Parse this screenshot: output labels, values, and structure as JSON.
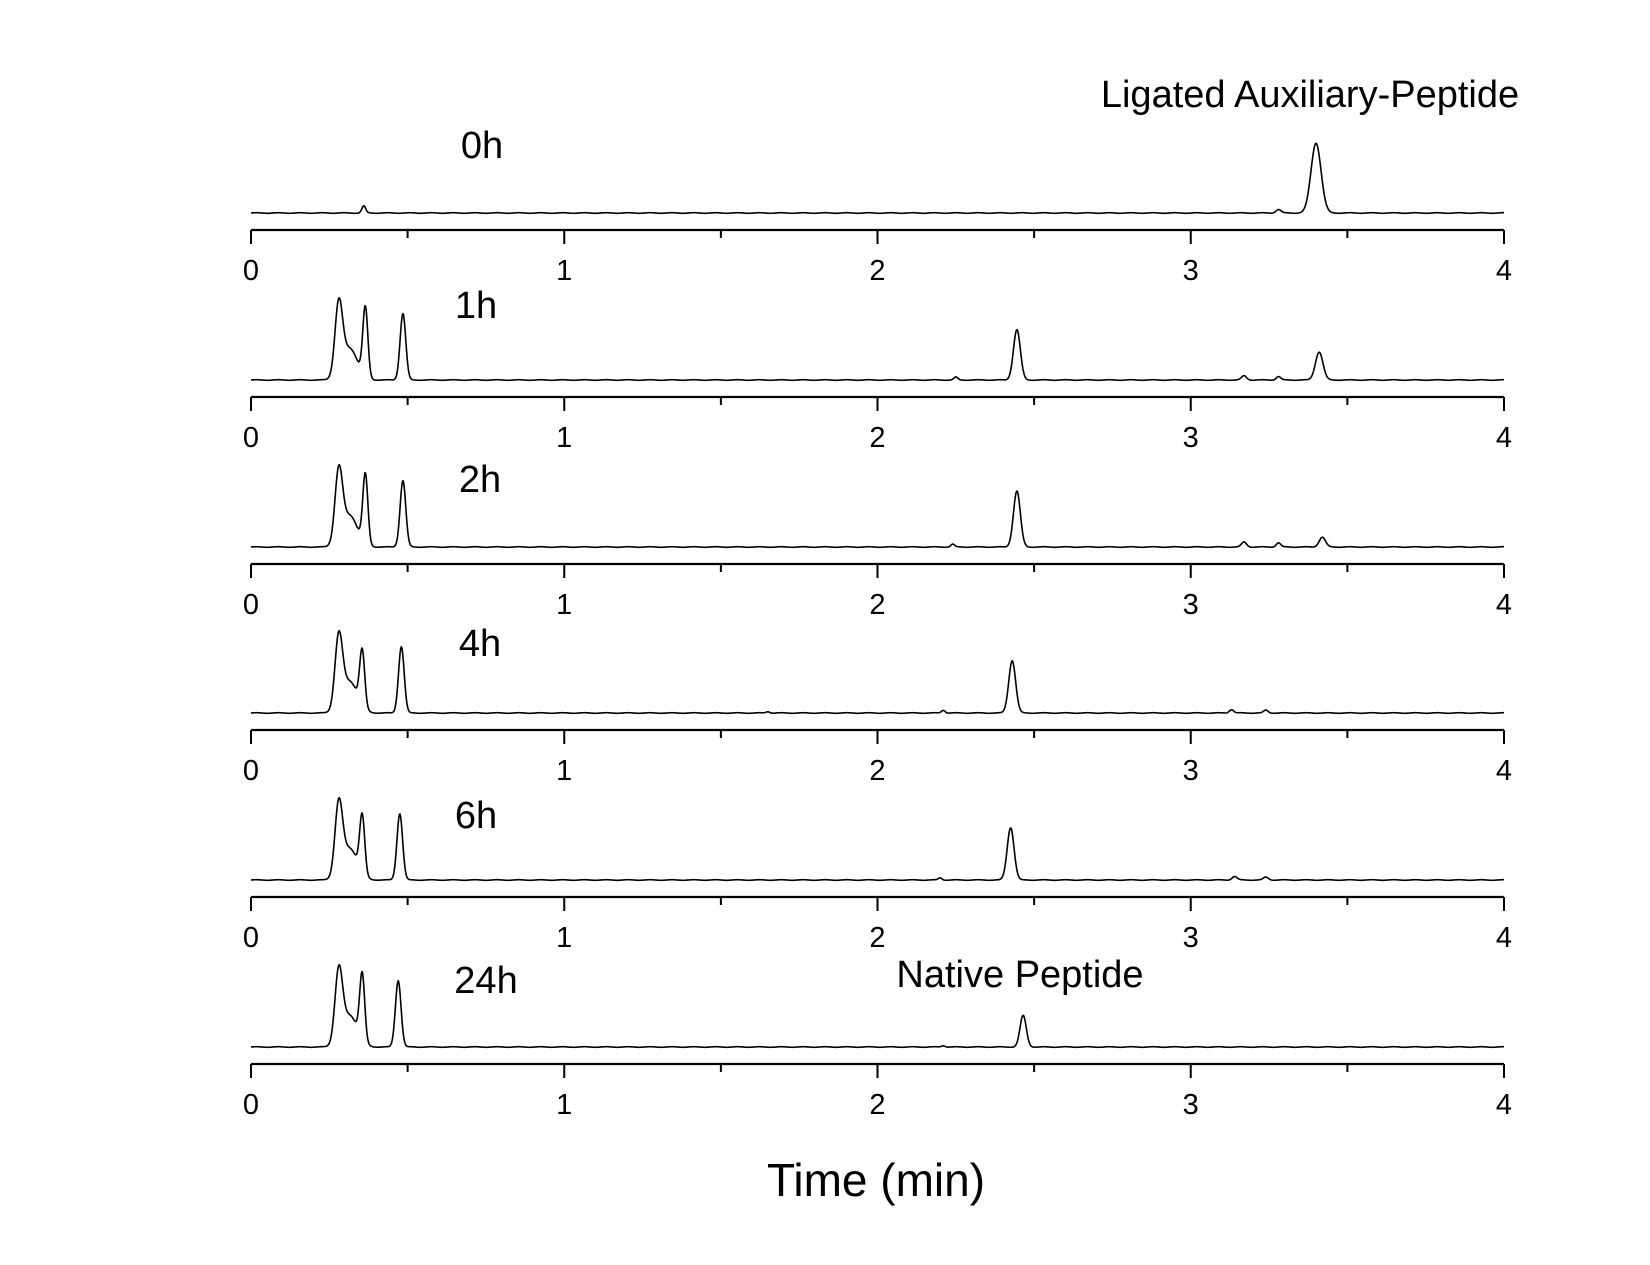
{
  "chart_data": {
    "type": "line",
    "xlabel": "Time (min)",
    "xlim": [
      0,
      4
    ],
    "xticks": [
      0,
      1,
      2,
      3,
      4
    ],
    "xtick_labels": [
      "0",
      "1",
      "2",
      "3",
      "4"
    ],
    "grid": false,
    "annotations": {
      "top": "Ligated Auxiliary-Peptide",
      "bottom": "Native Peptide"
    },
    "series": [
      {
        "name": "0h",
        "peaks": [
          {
            "t": 0.36,
            "h": 0.1,
            "w": 0.006
          },
          {
            "t": 3.28,
            "h": 0.05,
            "w": 0.008
          },
          {
            "t": 3.4,
            "h": 1.0,
            "w": 0.016
          }
        ]
      },
      {
        "name": "1h",
        "peaks": [
          {
            "t": 0.28,
            "h": 1.0,
            "w": 0.012
          },
          {
            "t": 0.315,
            "h": 0.45,
            "w": 0.025
          },
          {
            "t": 0.365,
            "h": 1.0,
            "w": 0.008
          },
          {
            "t": 0.485,
            "h": 0.95,
            "w": 0.009
          },
          {
            "t": 2.25,
            "h": 0.04,
            "w": 0.006
          },
          {
            "t": 2.445,
            "h": 0.72,
            "w": 0.011
          },
          {
            "t": 3.17,
            "h": 0.06,
            "w": 0.008
          },
          {
            "t": 3.28,
            "h": 0.05,
            "w": 0.007
          },
          {
            "t": 3.41,
            "h": 0.4,
            "w": 0.012
          }
        ]
      },
      {
        "name": "2h",
        "peaks": [
          {
            "t": 0.28,
            "h": 1.0,
            "w": 0.012
          },
          {
            "t": 0.315,
            "h": 0.45,
            "w": 0.025
          },
          {
            "t": 0.365,
            "h": 1.0,
            "w": 0.008
          },
          {
            "t": 0.485,
            "h": 0.95,
            "w": 0.009
          },
          {
            "t": 2.24,
            "h": 0.04,
            "w": 0.006
          },
          {
            "t": 2.445,
            "h": 0.8,
            "w": 0.011
          },
          {
            "t": 3.17,
            "h": 0.07,
            "w": 0.008
          },
          {
            "t": 3.28,
            "h": 0.06,
            "w": 0.007
          },
          {
            "t": 3.42,
            "h": 0.14,
            "w": 0.01
          }
        ]
      },
      {
        "name": "4h",
        "peaks": [
          {
            "t": 0.28,
            "h": 1.0,
            "w": 0.012
          },
          {
            "t": 0.315,
            "h": 0.45,
            "w": 0.025
          },
          {
            "t": 0.355,
            "h": 0.8,
            "w": 0.008
          },
          {
            "t": 0.48,
            "h": 0.95,
            "w": 0.009
          },
          {
            "t": 1.65,
            "h": 0.02,
            "w": 0.006
          },
          {
            "t": 2.21,
            "h": 0.04,
            "w": 0.006
          },
          {
            "t": 2.43,
            "h": 0.75,
            "w": 0.011
          },
          {
            "t": 3.13,
            "h": 0.05,
            "w": 0.007
          },
          {
            "t": 3.24,
            "h": 0.04,
            "w": 0.007
          }
        ]
      },
      {
        "name": "6h",
        "peaks": [
          {
            "t": 0.28,
            "h": 1.0,
            "w": 0.012
          },
          {
            "t": 0.315,
            "h": 0.45,
            "w": 0.025
          },
          {
            "t": 0.355,
            "h": 0.83,
            "w": 0.008
          },
          {
            "t": 0.475,
            "h": 0.95,
            "w": 0.009
          },
          {
            "t": 2.2,
            "h": 0.03,
            "w": 0.006
          },
          {
            "t": 2.425,
            "h": 0.75,
            "w": 0.011
          },
          {
            "t": 3.14,
            "h": 0.05,
            "w": 0.008
          },
          {
            "t": 3.24,
            "h": 0.04,
            "w": 0.008
          }
        ]
      },
      {
        "name": "24h",
        "peaks": [
          {
            "t": 0.28,
            "h": 1.0,
            "w": 0.012
          },
          {
            "t": 0.315,
            "h": 0.45,
            "w": 0.025
          },
          {
            "t": 0.355,
            "h": 0.95,
            "w": 0.008
          },
          {
            "t": 0.47,
            "h": 0.95,
            "w": 0.009
          },
          {
            "t": 2.21,
            "h": 0.02,
            "w": 0.006
          },
          {
            "t": 2.465,
            "h": 0.45,
            "w": 0.01
          }
        ]
      }
    ]
  }
}
